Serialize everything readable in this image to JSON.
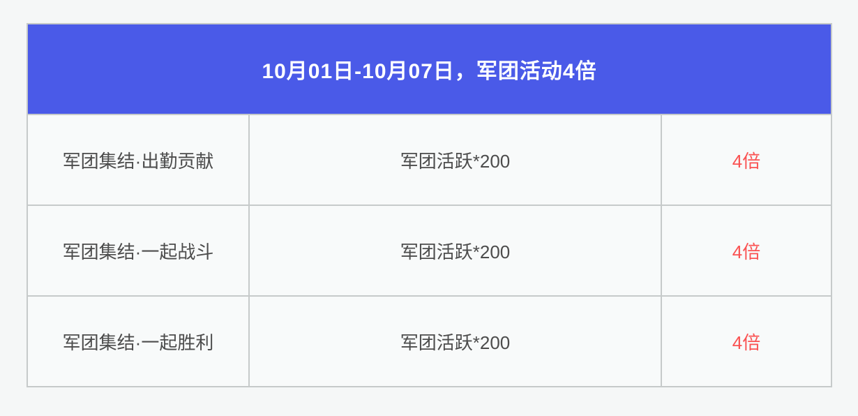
{
  "page": {
    "background_color": "#f5f7f7"
  },
  "table": {
    "header": {
      "title": "10月01日-10月07日，军团活动4倍",
      "background_color": "#4a5ae8",
      "text_color": "#ffffff"
    },
    "style": {
      "border_color": "#c6caca",
      "cell_background_color": "#f8fafa",
      "body_text_color": "#4c4c4c",
      "multiplier_text_color": "#fa5252"
    },
    "rows": [
      {
        "activity": "军团集结·出勤贡献",
        "reward": "军团活跃*200",
        "multiplier": "4倍"
      },
      {
        "activity": "军团集结·一起战斗",
        "reward": "军团活跃*200",
        "multiplier": "4倍"
      },
      {
        "activity": "军团集结·一起胜利",
        "reward": "军团活跃*200",
        "multiplier": "4倍"
      }
    ]
  }
}
